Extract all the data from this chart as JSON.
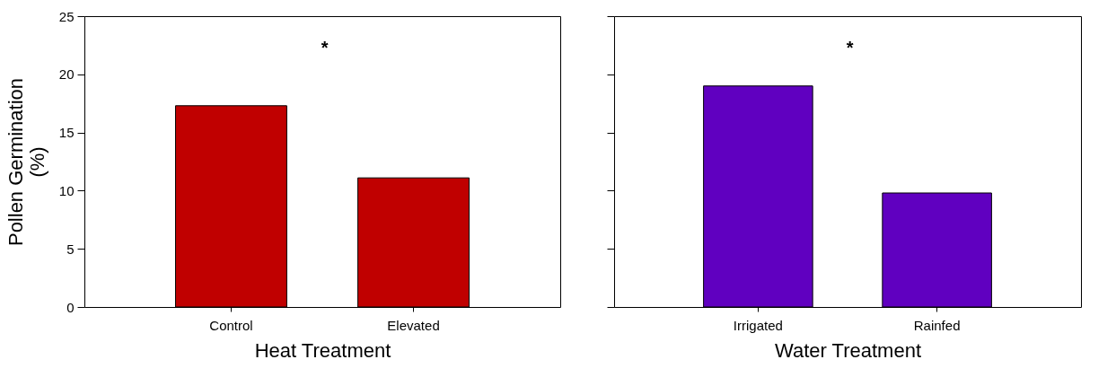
{
  "chart_data": [
    {
      "type": "bar",
      "categories": [
        "Control",
        "Elevated"
      ],
      "values": [
        17.3,
        11.1
      ],
      "color": "#c00000",
      "xlabel": "Heat Treatment",
      "ylabel": "Pollen Germination\n(%)",
      "ylim": [
        0,
        25
      ],
      "yticks": [
        0,
        5,
        10,
        15,
        20,
        25
      ],
      "annotations": [
        "*"
      ]
    },
    {
      "type": "bar",
      "categories": [
        "Irrigated",
        "Rainfed"
      ],
      "values": [
        19.0,
        9.8
      ],
      "color": "#6000c0",
      "xlabel": "Water Treatment",
      "ylim": [
        0,
        25
      ],
      "yticks": [
        0,
        5,
        10,
        15,
        20,
        25
      ],
      "tick_labels": "x",
      "annotations": [
        "*"
      ]
    }
  ]
}
